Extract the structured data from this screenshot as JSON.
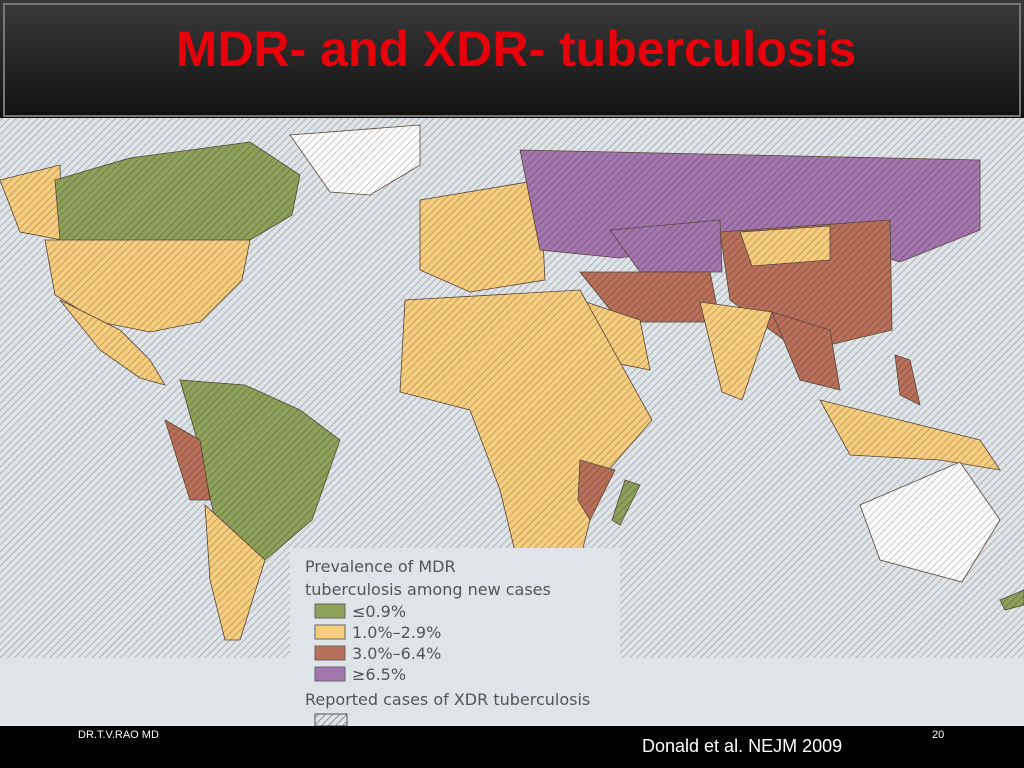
{
  "header": {
    "title": "MDR- and XDR- tuberculosis"
  },
  "legend": {
    "title_lines": [
      "Prevalence of MDR",
      "tuberculosis among new cases"
    ],
    "items": [
      {
        "label": "≤0.9%",
        "color": "#8ea15a"
      },
      {
        "label": "1.0%–2.9%",
        "color": "#f8cd7e"
      },
      {
        "label": "3.0%–6.4%",
        "color": "#b9705a"
      },
      {
        "label": "≥6.5%",
        "color": "#a476ae"
      }
    ],
    "xdr_label": "Reported cases of XDR tuberculosis"
  },
  "footer": {
    "author": "DR.T.V.RAO MD",
    "page": "20",
    "citation": "Donald et al. NEJM  2009"
  }
}
